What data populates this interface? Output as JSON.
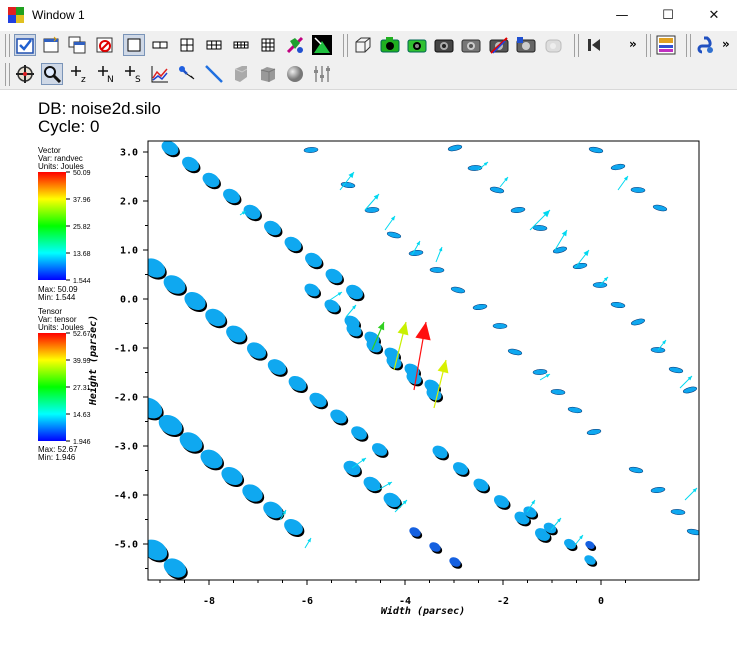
{
  "window": {
    "title": "Window 1",
    "minimize": "—",
    "maximize": "☐",
    "close": "✕"
  },
  "toolbar1": {
    "icons": [
      "active-window-checkbox-icon",
      "new-window-icon",
      "clone-window-icon",
      "delete-window-icon",
      "layout-1x1-icon",
      "layout-1x2-icon",
      "layout-2x2-icon",
      "layout-2x3-icon",
      "layout-3x3-icon",
      "layout-4x4-icon",
      "lighting-icon",
      "perspective-icon",
      "box-icon",
      "camera-icon"
    ],
    "overflow": "»"
  },
  "toolbar2": {
    "icons": [
      "navigate-icon",
      "zoom-icon",
      "zone-pick-icon",
      "node-pick-icon",
      "spreadsheet-pick-icon",
      "curve-icon",
      "point-tool-icon",
      "line-tool-icon",
      "plane-tool-icon",
      "box-tool-icon",
      "sphere-tool-icon",
      "axis-tool-icon"
    ]
  },
  "plot": {
    "db_label": "DB: noise2d.silo",
    "cycle_label": "Cycle: 0",
    "xlabel": "Width (parsec)",
    "ylabel": "Height (parsec)",
    "xticks": [
      "-8",
      "-6",
      "-4",
      "-2",
      "0"
    ],
    "yticks": [
      "3.0",
      "2.0",
      "1.0",
      "0.0",
      "-1.0",
      "-2.0",
      "-3.0",
      "-4.0",
      "-5.0"
    ]
  },
  "legend_vector": {
    "plot_type": "Vector",
    "var": "Var: randvec",
    "units": "Units: Joules",
    "ticks": [
      "50.09",
      "37.96",
      "25.82",
      "13.68",
      "1.544"
    ],
    "max": "Max: 50.09",
    "min": "Min: 1.544"
  },
  "legend_tensor": {
    "plot_type": "Tensor",
    "var": "Var: tensor",
    "units": "Units: Joules",
    "ticks": [
      "52.67",
      "39.99",
      "27.31",
      "14.63",
      "1.946"
    ],
    "max": "Max: 52.67",
    "min": "Min: 1.946"
  },
  "colors": {
    "ellipse_fill": "#0fa8f0",
    "ellipse_dark": "#1560e0",
    "vector_default": "#00d8f0"
  }
}
